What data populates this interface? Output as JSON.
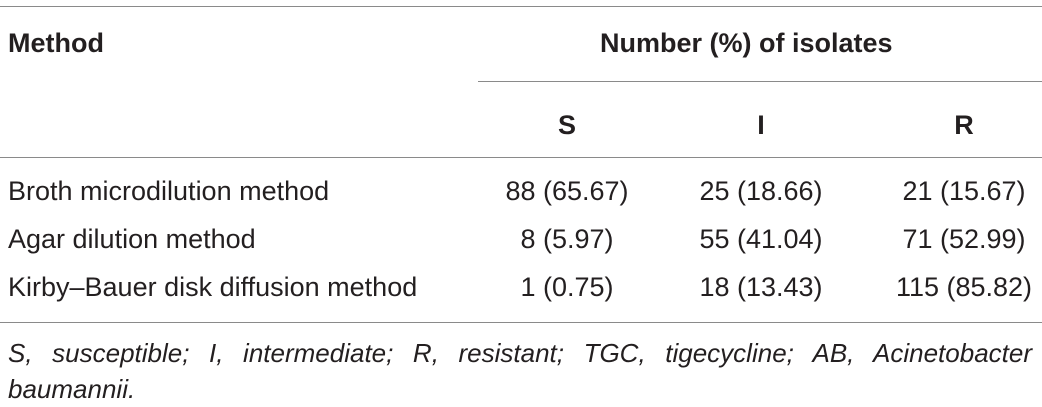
{
  "table": {
    "header": {
      "method": "Method",
      "group": "Number (%) of isolates",
      "columns": [
        "S",
        "I",
        "R"
      ]
    },
    "rows": [
      [
        "Broth microdilution method",
        "88 (65.67)",
        "25 (18.66)",
        "21 (15.67)"
      ],
      [
        "Agar dilution method",
        "8 (5.97)",
        "55 (41.04)",
        "71 (52.99)"
      ],
      [
        "Kirby–Bauer disk diffusion method",
        "1 (0.75)",
        "18 (13.43)",
        "115 (85.82)"
      ]
    ],
    "footnote": "S, susceptible; I, intermediate; R, resistant; TGC, tigecycline; AB, Acinetobacter baumannii."
  }
}
